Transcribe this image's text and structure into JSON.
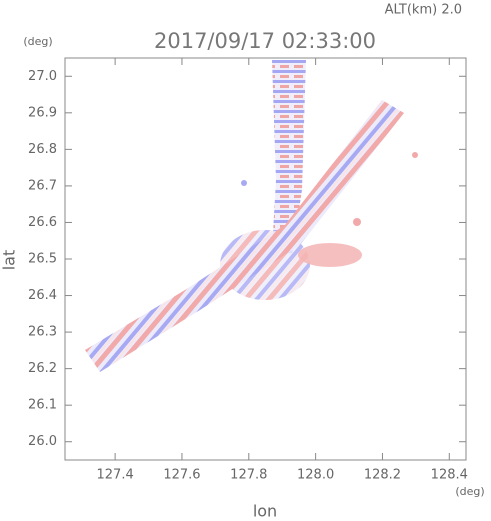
{
  "chart_data": {
    "type": "image",
    "title": "2017/09/17 02:33:00",
    "subtitle": "ALT(km) 2.0",
    "x_label": "lon",
    "y_label": "lat",
    "x_unit": "(deg)",
    "y_unit": "(deg)",
    "xlim": [
      127.25,
      128.45
    ],
    "ylim": [
      25.95,
      27.05
    ],
    "xticks": [
      127.4,
      127.6,
      127.8,
      {
        "value": 128.0,
        "label": "128.0"
      },
      128.2,
      128.4
    ],
    "yticks": [
      {
        "value": 26.0,
        "label": "26.0"
      },
      26.1,
      26.2,
      26.3,
      26.4,
      26.5,
      26.6,
      26.7,
      26.8,
      26.9,
      {
        "value": 27.0,
        "label": "27.0"
      }
    ]
  }
}
